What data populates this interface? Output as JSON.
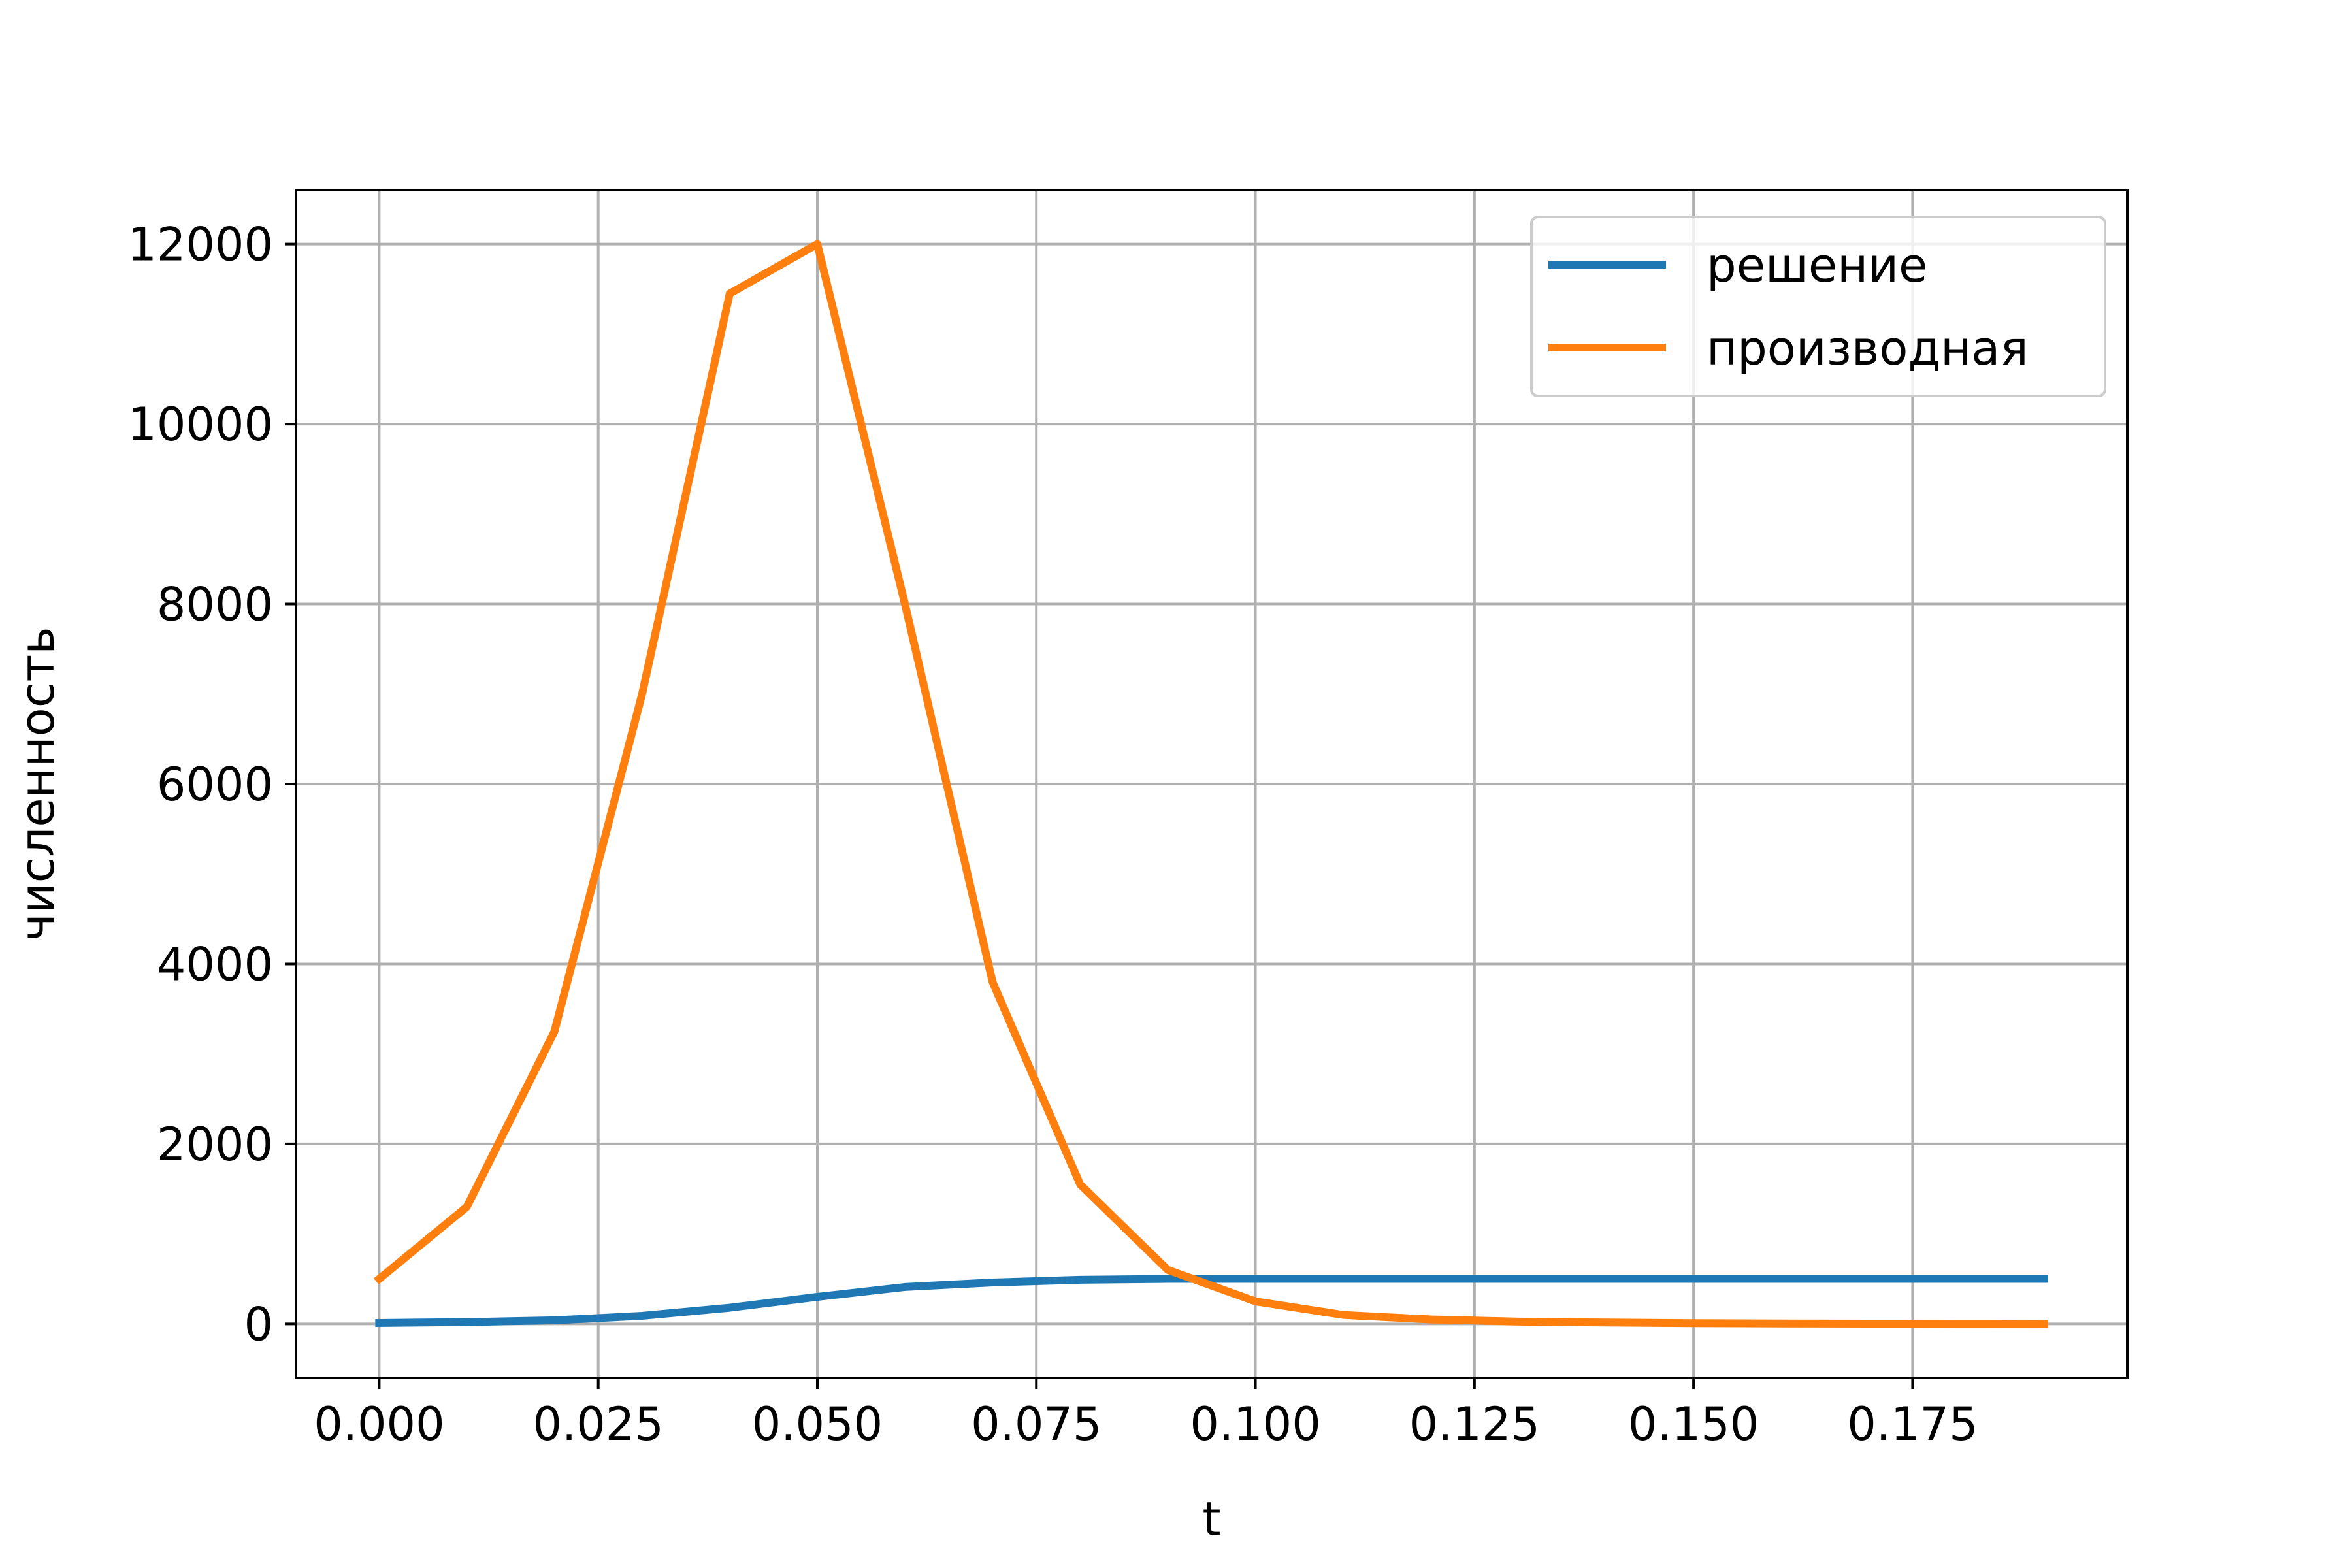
{
  "chart_data": {
    "type": "line",
    "title": "",
    "xlabel": "t",
    "ylabel": "численность",
    "xlim": [
      -0.0095,
      0.1995
    ],
    "ylim": [
      -600,
      12600
    ],
    "xticks": [
      0.0,
      0.025,
      0.05,
      0.075,
      0.1,
      0.125,
      0.15,
      0.175
    ],
    "xtick_labels": [
      "0.000",
      "0.025",
      "0.050",
      "0.075",
      "0.100",
      "0.125",
      "0.150",
      "0.175"
    ],
    "yticks": [
      0,
      2000,
      4000,
      6000,
      8000,
      10000,
      12000
    ],
    "ytick_labels": [
      "0",
      "2000",
      "4000",
      "6000",
      "8000",
      "10000",
      "12000"
    ],
    "grid": true,
    "legend_position": "top-right",
    "x": [
      0.0,
      0.01,
      0.02,
      0.03,
      0.04,
      0.05,
      0.06,
      0.07,
      0.08,
      0.09,
      0.1,
      0.11,
      0.12,
      0.13,
      0.14,
      0.15,
      0.16,
      0.17,
      0.18,
      0.19
    ],
    "series": [
      {
        "name": "решение",
        "color": "#1f77b4",
        "values": [
          10,
          20,
          40,
          90,
          180,
          300,
          410,
          460,
          490,
          500,
          500,
          500,
          500,
          500,
          500,
          500,
          500,
          500,
          500,
          500
        ]
      },
      {
        "name": "производная",
        "color": "#ff7f0e",
        "values": [
          500,
          1300,
          3250,
          7000,
          11450,
          12000,
          8000,
          3800,
          1550,
          600,
          250,
          100,
          50,
          25,
          15,
          8,
          5,
          3,
          2,
          1
        ]
      }
    ]
  }
}
